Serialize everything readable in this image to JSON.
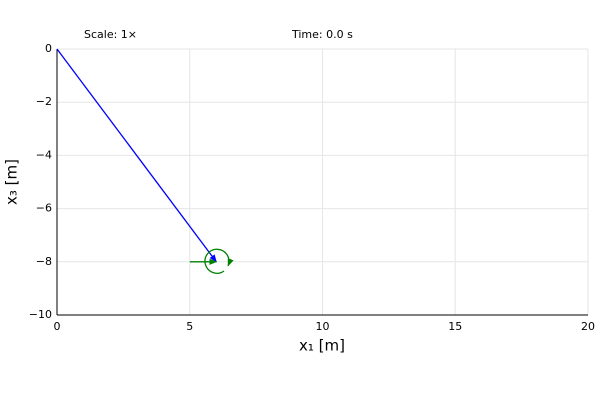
{
  "chart_data": {
    "type": "line",
    "xlabel": "x₁ [m]",
    "ylabel": "x₃ [m]",
    "annotations": [
      "Scale: 1×",
      "Time: 0.0 s"
    ],
    "xlim": [
      0,
      20
    ],
    "xticks": [
      0,
      5,
      10,
      15,
      20
    ],
    "ylim": [
      -10,
      0
    ],
    "yticks": [
      {
        "value": -10,
        "label": "−10"
      },
      {
        "value": -8,
        "label": "−8"
      },
      {
        "value": -6,
        "label": "−6"
      },
      {
        "value": -4,
        "label": "−4"
      },
      {
        "value": -2,
        "label": "−2"
      },
      0
    ],
    "grid": true,
    "series": [
      {
        "color": "#0000ff",
        "x": [
          0,
          6
        ],
        "values": [
          0,
          -8
        ],
        "arrow": true
      },
      {
        "color": "#008000",
        "x": [
          5,
          6
        ],
        "values": [
          -8,
          -8
        ],
        "arrow": true
      }
    ],
    "moment": {
      "x": 6,
      "y": -8,
      "color": "#008000"
    }
  }
}
